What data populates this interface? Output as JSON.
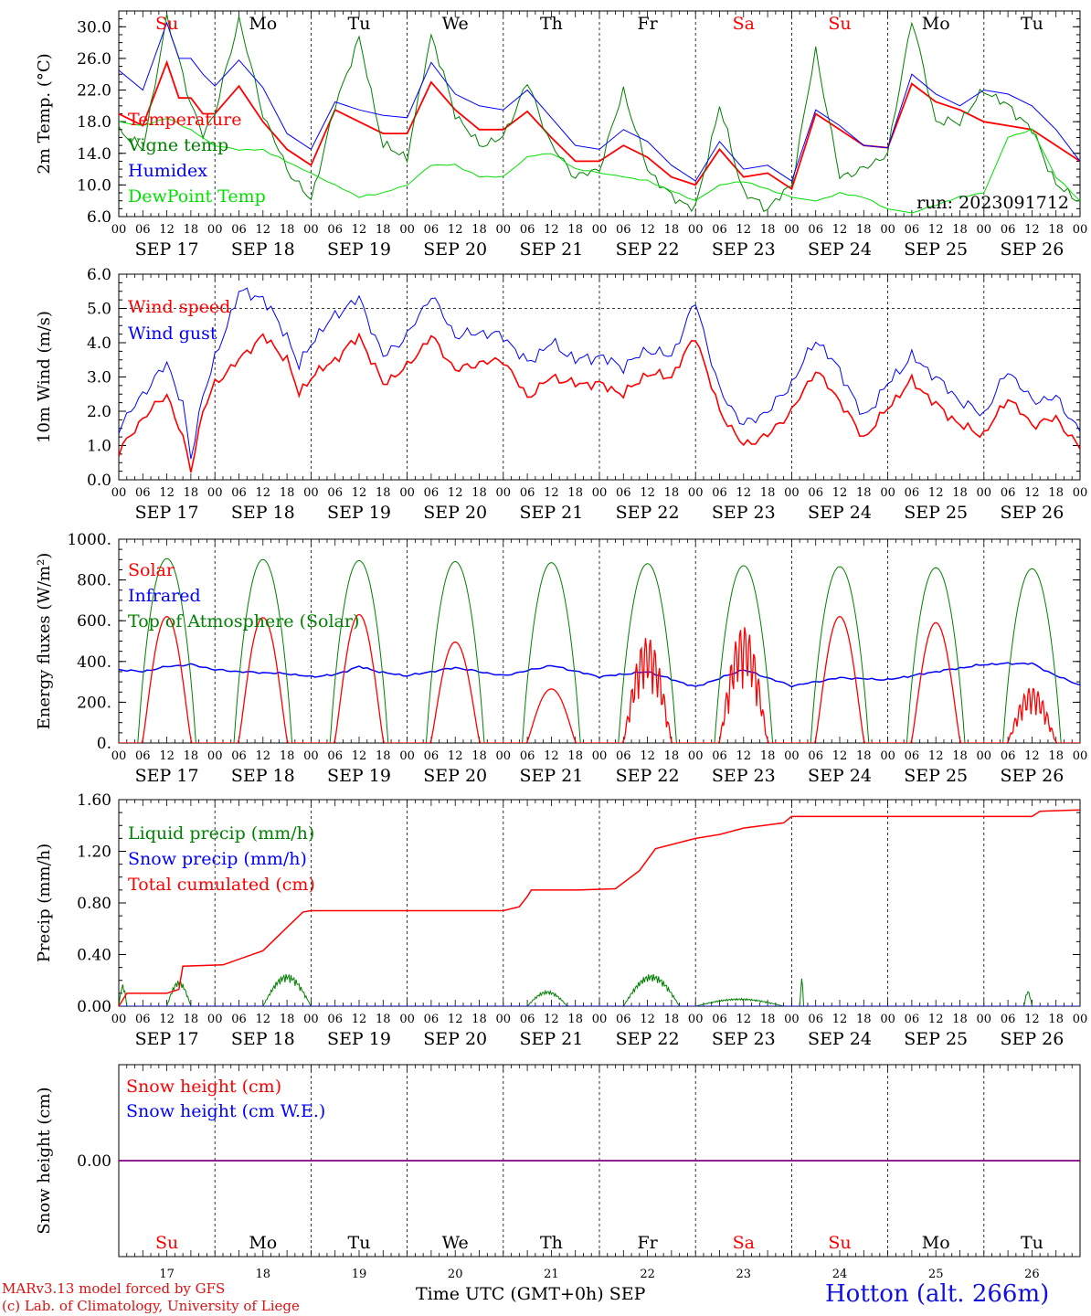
{
  "colors": {
    "red": "#ff0000",
    "green": "#008000",
    "blue": "#0000ff",
    "lime": "#00e000",
    "purple": "#800080",
    "black": "#000000"
  },
  "chart_data": [
    {
      "type": "line",
      "ylabel": "2m Temp. (°C)",
      "ylim": [
        6,
        32
      ],
      "yticks": [
        "6.0",
        "10.0",
        "14.0",
        "18.0",
        "22.0",
        "26.0",
        "30.0"
      ],
      "yticks_values": [
        6,
        10,
        14,
        18,
        22,
        26,
        30
      ],
      "annotation": "run: 2023091712",
      "series": [
        {
          "name": "Temperature",
          "color": "#ff0000",
          "x": [
            0,
            6,
            12,
            15,
            18,
            21,
            24,
            30,
            36,
            42,
            48,
            54,
            60,
            66,
            72,
            78,
            84,
            90,
            96,
            102,
            108,
            114,
            120,
            126,
            132,
            138,
            144,
            150,
            156,
            162,
            168,
            174,
            180,
            186,
            192,
            198,
            204,
            210,
            216,
            222,
            228,
            234,
            240
          ],
          "y": [
            19,
            17.5,
            25.5,
            21,
            21,
            19,
            19,
            22.5,
            18,
            14.5,
            12.5,
            19.5,
            18,
            16.5,
            16.5,
            23,
            19.5,
            17,
            17,
            19.3,
            16,
            13,
            13,
            15,
            13.5,
            11,
            10,
            14.5,
            11,
            11.5,
            9.5,
            19,
            17,
            15,
            14.7,
            22.8,
            20.5,
            19.5,
            18,
            17.5,
            17,
            15,
            13
          ]
        },
        {
          "name": "Vigne temp",
          "color": "#008000",
          "x": [
            0,
            6,
            12,
            15,
            18,
            21,
            24,
            30,
            36,
            42,
            48,
            54,
            60,
            66,
            72,
            78,
            84,
            90,
            96,
            102,
            108,
            114,
            120,
            126,
            132,
            138,
            144,
            150,
            156,
            162,
            168,
            174,
            180,
            186,
            192,
            198,
            204,
            210,
            216,
            222,
            228,
            234,
            240
          ],
          "y": [
            17,
            14.5,
            31,
            26,
            20,
            16.5,
            19,
            31,
            19,
            12,
            8,
            20,
            28.5,
            15,
            13.5,
            29,
            19,
            15,
            16,
            23,
            15,
            11,
            12,
            22,
            12,
            8.5,
            7,
            20,
            9,
            7,
            10,
            27,
            11,
            12,
            14,
            31,
            18,
            18,
            22,
            20,
            17,
            10,
            8
          ]
        },
        {
          "name": "Humidex",
          "color": "#0000ff",
          "x": [
            0,
            6,
            12,
            15,
            18,
            21,
            24,
            30,
            36,
            42,
            48,
            54,
            60,
            66,
            72,
            78,
            84,
            90,
            96,
            102,
            108,
            114,
            120,
            126,
            132,
            138,
            144,
            150,
            156,
            162,
            168,
            174,
            180,
            186,
            192,
            198,
            204,
            210,
            216,
            222,
            228,
            234,
            240
          ],
          "y": [
            24.5,
            22,
            30.5,
            26,
            26,
            24,
            22.5,
            25.8,
            22.3,
            16.5,
            14.5,
            20.5,
            19.5,
            18.8,
            18.5,
            25.5,
            21.5,
            20,
            19.5,
            22,
            18.5,
            15,
            14.5,
            17,
            15.5,
            12.5,
            10.5,
            15.5,
            12,
            12.5,
            10.5,
            19.5,
            17.5,
            15,
            14.7,
            24,
            21.5,
            20,
            22,
            21.5,
            20,
            17,
            13
          ]
        },
        {
          "name": "DewPoint Temp",
          "color": "#00e000",
          "x": [
            0,
            6,
            12,
            18,
            24,
            30,
            36,
            48,
            60,
            66,
            72,
            78,
            84,
            90,
            96,
            102,
            108,
            114,
            120,
            132,
            144,
            150,
            156,
            162,
            168,
            174,
            180,
            186,
            192,
            198,
            204,
            210,
            216,
            222,
            228,
            234,
            240
          ],
          "y": [
            18,
            17.5,
            18.5,
            17,
            15,
            14.5,
            14.5,
            11.5,
            8.5,
            9,
            10,
            12.5,
            12.5,
            11,
            11,
            13.5,
            14,
            12,
            11.5,
            10.5,
            8,
            10,
            10.5,
            9.5,
            8.5,
            8,
            9,
            8.5,
            7,
            6.5,
            7.5,
            8.5,
            9,
            16,
            17,
            11,
            8
          ]
        }
      ]
    },
    {
      "type": "line",
      "ylabel": "10m Wind (m/s)",
      "ylim": [
        0,
        6
      ],
      "yticks": [
        "0.0",
        "1.0",
        "2.0",
        "3.0",
        "4.0",
        "5.0",
        "6.0"
      ],
      "yticks_values": [
        0,
        1,
        2,
        3,
        4,
        5,
        6
      ],
      "reference_line": 5,
      "series": [
        {
          "name": "Wind speed",
          "color": "#ff0000",
          "x": [
            0,
            6,
            12,
            16,
            18,
            21,
            24,
            30,
            36,
            42,
            45,
            48,
            54,
            60,
            66,
            72,
            78,
            84,
            90,
            96,
            102,
            108,
            114,
            120,
            126,
            132,
            138,
            144,
            150,
            156,
            162,
            168,
            174,
            180,
            186,
            192,
            198,
            204,
            210,
            216,
            222,
            228,
            234,
            240
          ],
          "y": [
            0.8,
            1.8,
            2.5,
            1.2,
            0.3,
            2,
            2.8,
            3.5,
            4.2,
            3.5,
            2.5,
            3,
            3.5,
            4.2,
            2.8,
            3.3,
            4.2,
            3.2,
            3.4,
            3.5,
            2.4,
            3,
            2.8,
            2.8,
            2.5,
            3.1,
            3,
            4.2,
            2,
            1,
            1.3,
            2,
            3.2,
            2.3,
            1.2,
            2.1,
            2.9,
            2.2,
            1.6,
            1.3,
            2.4,
            1.6,
            1.8,
            0.9
          ]
        },
        {
          "name": "Wind gust",
          "color": "#0000ff",
          "x": [
            0,
            6,
            12,
            16,
            18,
            21,
            24,
            30,
            36,
            42,
            45,
            48,
            54,
            60,
            66,
            72,
            78,
            84,
            90,
            96,
            102,
            108,
            114,
            120,
            126,
            132,
            138,
            144,
            150,
            156,
            162,
            168,
            174,
            180,
            186,
            192,
            198,
            204,
            210,
            216,
            222,
            228,
            234,
            240
          ],
          "y": [
            1.5,
            2.5,
            3.4,
            2.2,
            0.6,
            2.5,
            3.5,
            5.5,
            5.3,
            4.2,
            3.3,
            4,
            4.8,
            5.3,
            3.6,
            4.2,
            5.4,
            4.2,
            4.3,
            4.2,
            3.4,
            4,
            3.5,
            3.6,
            3.3,
            3.8,
            3.6,
            5.2,
            2.6,
            1.6,
            2,
            2.8,
            4.1,
            3.2,
            1.8,
            2.8,
            3.6,
            3,
            2.3,
            1.9,
            3.2,
            2.3,
            2.4,
            1.4
          ]
        }
      ]
    },
    {
      "type": "line",
      "ylabel": "Energy fluxes (W/m²)",
      "ylim": [
        0,
        1000
      ],
      "yticks": [
        "0.",
        "200.",
        "400.",
        "600.",
        "800.",
        "1000."
      ],
      "yticks_values": [
        0,
        200,
        400,
        600,
        800,
        1000
      ],
      "series": [
        {
          "name": "Solar",
          "color": "#ff0000",
          "daily_peak": [
            620,
            615,
            630,
            495,
            265,
            520,
            575,
            620,
            590,
            275
          ]
        },
        {
          "name": "Infrared",
          "color": "#0000ff",
          "x": [
            0,
            6,
            12,
            18,
            24,
            30,
            36,
            42,
            48,
            54,
            60,
            66,
            72,
            84,
            96,
            108,
            120,
            132,
            144,
            156,
            168,
            180,
            192,
            204,
            216,
            222,
            228,
            234,
            240
          ],
          "y": [
            360,
            350,
            375,
            385,
            360,
            350,
            345,
            340,
            325,
            335,
            375,
            345,
            330,
            370,
            330,
            380,
            325,
            350,
            275,
            360,
            280,
            320,
            310,
            350,
            385,
            390,
            390,
            330,
            285
          ]
        },
        {
          "name": "Top of Atmosphere (Solar)",
          "color": "#008000",
          "daily_peak": [
            905,
            900,
            895,
            890,
            885,
            880,
            870,
            865,
            860,
            855
          ]
        }
      ]
    },
    {
      "type": "line",
      "ylabel": "Precip (mm/h)",
      "ylim": [
        0,
        1.6
      ],
      "yticks": [
        "0.00",
        "0.40",
        "0.80",
        "1.20",
        "1.60"
      ],
      "yticks_values": [
        0,
        0.4,
        0.8,
        1.2,
        1.6
      ],
      "series": [
        {
          "name": "Liquid precip (mm/h)",
          "color": "#008000",
          "events": [
            [
              0,
              2,
              0.17
            ],
            [
              12,
              18,
              0.2
            ],
            [
              36,
              48,
              0.25
            ],
            [
              102,
              112,
              0.12
            ],
            [
              126,
              140,
              0.25
            ],
            [
              144,
              166,
              0.06
            ],
            [
              170,
              171,
              0.22
            ],
            [
              226,
              228,
              0.12
            ]
          ]
        },
        {
          "name": "Snow precip (mm/h)",
          "color": "#0000ff",
          "x": [
            0,
            240
          ],
          "y": [
            0,
            0
          ]
        },
        {
          "name": "Total cumulated (cm)",
          "color": "#ff0000",
          "x": [
            0,
            2,
            12,
            15,
            16,
            26,
            36,
            40,
            46,
            48,
            96,
            100,
            102,
            103,
            114,
            124,
            130,
            134,
            144,
            150,
            156,
            166,
            168,
            228,
            230,
            240
          ],
          "y": [
            0,
            0.1,
            0.1,
            0.13,
            0.31,
            0.32,
            0.43,
            0.55,
            0.73,
            0.74,
            0.74,
            0.77,
            0.85,
            0.9,
            0.9,
            0.91,
            1.05,
            1.22,
            1.3,
            1.33,
            1.38,
            1.42,
            1.47,
            1.47,
            1.51,
            1.52
          ]
        }
      ]
    },
    {
      "type": "line",
      "ylabel": "Snow height (cm)",
      "ylim": [
        -1,
        1
      ],
      "yticks": [
        "0.00"
      ],
      "yticks_values": [
        0
      ],
      "series": [
        {
          "name": "Snow height (cm)",
          "color": "#ff0000",
          "x": [
            0,
            240
          ],
          "y": [
            0,
            0
          ]
        },
        {
          "name": "Snow height (cm W.E.)",
          "color": "#0000ff",
          "x": [
            0,
            240
          ],
          "y": [
            0,
            0
          ]
        }
      ]
    }
  ],
  "hour_ticks": [
    "00",
    "06",
    "12",
    "18"
  ],
  "final_hour_tick": "00",
  "date_labels": [
    "SEP 17",
    "SEP 18",
    "SEP 19",
    "SEP 20",
    "SEP 21",
    "SEP 22",
    "SEP 23",
    "SEP 24",
    "SEP 25",
    "SEP 26"
  ],
  "day_names": [
    {
      "label": "Su",
      "weekend": true
    },
    {
      "label": "Mo",
      "weekend": false
    },
    {
      "label": "Tu",
      "weekend": false
    },
    {
      "label": "We",
      "weekend": false
    },
    {
      "label": "Th",
      "weekend": false
    },
    {
      "label": "Fr",
      "weekend": false
    },
    {
      "label": "Sa",
      "weekend": true
    },
    {
      "label": "Su",
      "weekend": true
    },
    {
      "label": "Mo",
      "weekend": false
    },
    {
      "label": "Tu",
      "weekend": false
    }
  ],
  "day_numbers": [
    "17",
    "18",
    "19",
    "20",
    "21",
    "22",
    "23",
    "24",
    "25",
    "26"
  ],
  "footer": {
    "credit_line_1": "MARv3.13 model forced by GFS",
    "credit_line_2": "(c) Lab. of Climatology, University of Liege",
    "xlabel": "Time UTC (GMT+0h) SEP",
    "station": "Hotton (alt. 266m)"
  }
}
